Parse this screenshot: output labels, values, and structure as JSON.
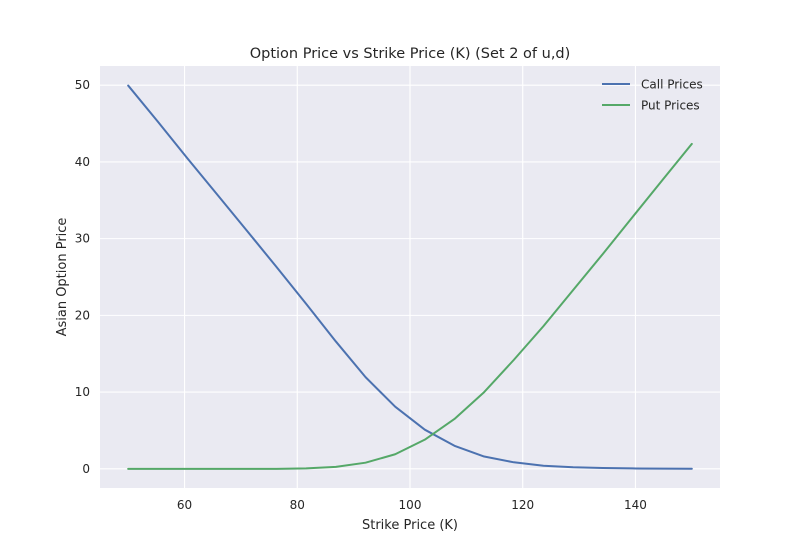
{
  "chart_data": {
    "type": "line",
    "title": "Option Price vs Strike Price (K) (Set 2 of u,d)",
    "xlabel": "Strike Price (K)",
    "ylabel": "Asian Option Price",
    "xlim": [
      45.0,
      155.0
    ],
    "ylim": [
      -2.5,
      52.5
    ],
    "xticks": [
      60,
      80,
      100,
      120,
      140
    ],
    "yticks": [
      0,
      10,
      20,
      30,
      40,
      50
    ],
    "grid": true,
    "legend_position": "top-right",
    "x": [
      50,
      55.26,
      60.53,
      65.79,
      71.05,
      76.32,
      81.58,
      86.84,
      92.11,
      97.37,
      102.63,
      107.89,
      113.16,
      118.42,
      123.68,
      128.95,
      134.21,
      139.47,
      144.74,
      150
    ],
    "series": [
      {
        "name": "Call Prices",
        "color": "#4c72b0",
        "values": [
          49.95,
          45.25,
          40.45,
          35.75,
          31.05,
          26.3,
          21.5,
          16.6,
          11.95,
          8.1,
          5.1,
          3.0,
          1.6,
          0.85,
          0.4,
          0.2,
          0.1,
          0.05,
          0.02,
          0.01
        ]
      },
      {
        "name": "Put Prices",
        "color": "#55a868",
        "values": [
          0.0,
          0.0,
          0.0,
          0.0,
          0.0,
          0.0,
          0.05,
          0.25,
          0.8,
          1.9,
          3.8,
          6.5,
          10.0,
          14.2,
          18.6,
          23.3,
          28.0,
          32.8,
          37.6,
          42.35
        ]
      }
    ]
  }
}
